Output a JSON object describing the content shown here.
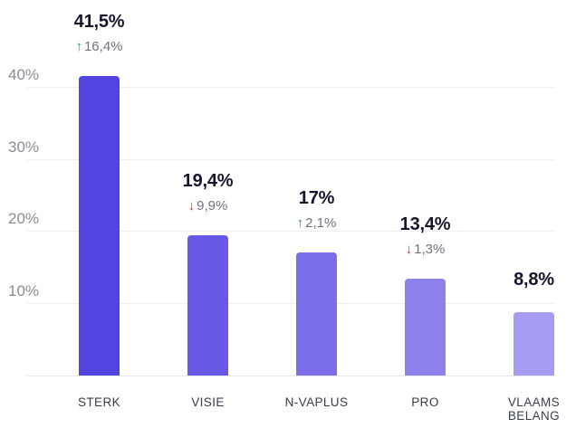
{
  "chart_data": {
    "type": "bar",
    "title": "",
    "categories": [
      "STERK",
      "VISIE",
      "N-VAPLUS",
      "PRO",
      "VLAAMS BELANG"
    ],
    "values": [
      41.5,
      19.4,
      17,
      13.4,
      8.8
    ],
    "value_labels": [
      "41,5%",
      "19,4%",
      "17%",
      "13,4%",
      "8,8%"
    ],
    "changes": [
      {
        "direction": "up",
        "label": "16,4%"
      },
      {
        "direction": "down",
        "label": "9,9%"
      },
      {
        "direction": "up",
        "label": "2,1%"
      },
      {
        "direction": "down",
        "label": "1,3%"
      },
      null
    ],
    "bar_colors": [
      "#5244e1",
      "#6759e5",
      "#7b6ee8",
      "#8d81ec",
      "#a69cf1"
    ],
    "y_axis": {
      "tick_labels": [
        "10%",
        "20%",
        "30%",
        "40%"
      ],
      "tick_values": [
        10,
        20,
        30,
        40
      ],
      "min": 0,
      "max": 42,
      "grid": true
    },
    "arrows": {
      "up": "↑",
      "down": "↓"
    },
    "colors": {
      "value_text": "#15152b",
      "change_text": "#71717d",
      "up_arrow": "#2e9b47",
      "down_arrow": "#c2413a",
      "axis_text": "#8b8b96",
      "category_text": "#3b3b4a",
      "gridline": "#ededf2",
      "baseline": "#e6e6ec",
      "background": "#ffffff"
    },
    "legend": null,
    "grid": "horizontal-only"
  }
}
